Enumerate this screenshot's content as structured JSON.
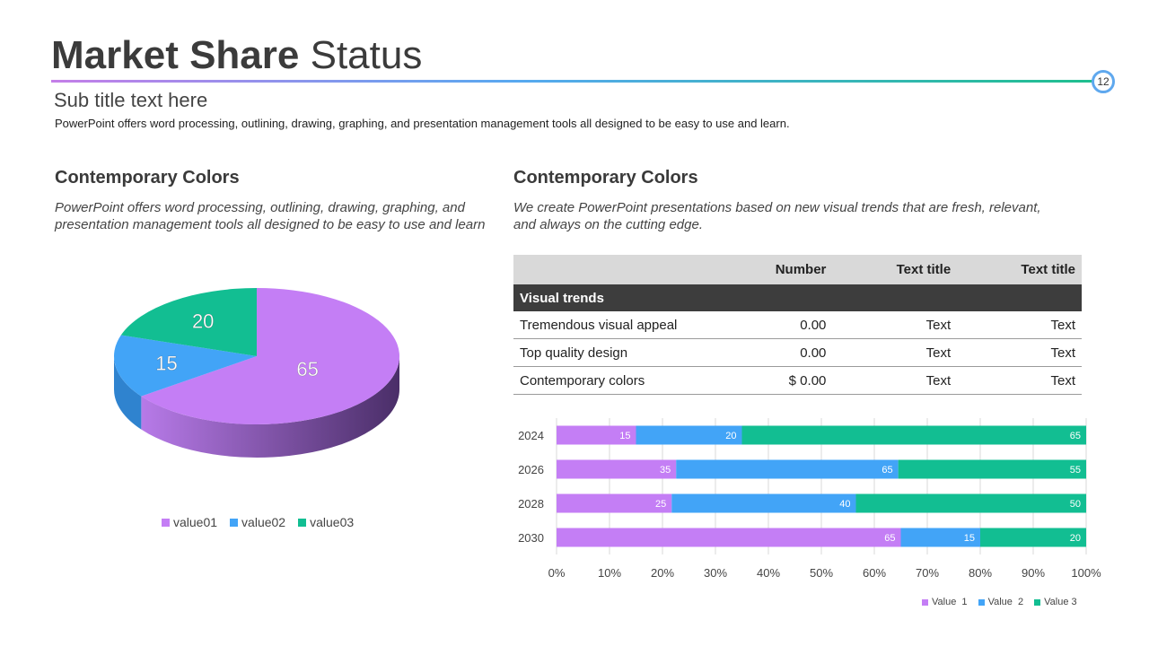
{
  "header": {
    "title_bold": "Market Share",
    "title_light": "Status",
    "page_number": "12",
    "subtitle": "Sub title text here",
    "intro": "PowerPoint offers word processing, outlining, drawing, graphing, and presentation management tools all designed to be easy to use and learn."
  },
  "left": {
    "heading": "Contemporary Colors",
    "body": "PowerPoint offers word processing, outlining,  drawing, graphing, and presentation management tools all designed to be easy to use and learn"
  },
  "right": {
    "heading": "Contemporary Colors",
    "body": "We create PowerPoint presentations based on new visual trends that are fresh, relevant, and always on the cutting  edge."
  },
  "table": {
    "headers": [
      "",
      "Number",
      "Text title",
      "Text title"
    ],
    "band": "Visual trends",
    "rows": [
      [
        "Tremendous visual appeal",
        "0.00",
        "Text",
        "Text"
      ],
      [
        "Top quality design",
        "0.00",
        "Text",
        "Text"
      ],
      [
        "Contemporary colors",
        "$ 0.00",
        "Text",
        "Text"
      ]
    ]
  },
  "colors": {
    "purple": "#c47ef5",
    "blue": "#42a4f7",
    "green": "#12be92"
  },
  "chart_data": [
    {
      "type": "pie",
      "title": "",
      "categories": [
        "value01",
        "value02",
        "value03"
      ],
      "values": [
        65,
        15,
        20
      ],
      "legend": "bottom"
    },
    {
      "type": "bar",
      "orientation": "horizontal",
      "stacked": "percent",
      "title": "",
      "categories": [
        "2024",
        "2026",
        "2028",
        "2030"
      ],
      "series": [
        {
          "name": "Value  1",
          "values": [
            15,
            35,
            25,
            65
          ]
        },
        {
          "name": "Value  2",
          "values": [
            20,
            65,
            40,
            15
          ]
        },
        {
          "name": "Value 3",
          "values": [
            65,
            55,
            50,
            20
          ]
        }
      ],
      "xlim": [
        0,
        100
      ],
      "x_ticks": [
        "0%",
        "10%",
        "20%",
        "30%",
        "40%",
        "50%",
        "60%",
        "70%",
        "80%",
        "90%",
        "100%"
      ],
      "grid": true,
      "legend": "bottom-right"
    }
  ]
}
